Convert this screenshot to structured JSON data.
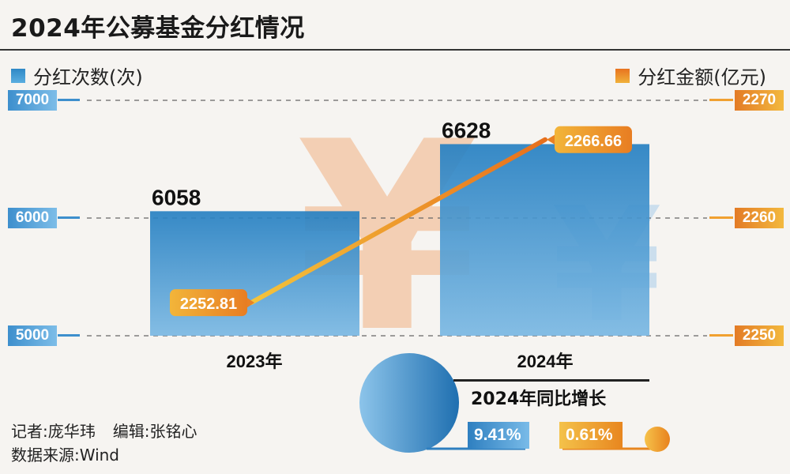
{
  "title": "2024年公募基金分红情况",
  "legend": {
    "left": "分红次数(次)",
    "right": "分红金额(亿元)"
  },
  "chart_data": {
    "type": "bar+line",
    "categories": [
      "2023年",
      "2024年"
    ],
    "series": [
      {
        "name": "分红次数(次)",
        "type": "bar",
        "axis": "left",
        "values": [
          6058,
          6628
        ],
        "value_labels": [
          "6058",
          "6628"
        ]
      },
      {
        "name": "分红金额(亿元)",
        "type": "line",
        "axis": "right",
        "values": [
          2252.81,
          2266.66
        ],
        "value_labels": [
          "2252.81",
          "2266.66"
        ]
      }
    ],
    "left_axis": {
      "ylim": [
        5000,
        7000
      ],
      "ticks": [
        "7000",
        "6000",
        "5000"
      ]
    },
    "right_axis": {
      "ylim": [
        2250,
        2270
      ],
      "ticks": [
        "2270",
        "2260",
        "2250"
      ]
    },
    "grid": true,
    "colors": {
      "bar": "#2f88c6",
      "line": "#ee8a26"
    }
  },
  "growth": {
    "title": "2024年同比增长",
    "count_growth": "9.41%",
    "amount_growth": "0.61%"
  },
  "footer": {
    "reporter": "记者:庞华玮",
    "editor": "编辑:张铭心",
    "source": "数据来源:Wind"
  },
  "watermark": {
    "symbol": "¥"
  }
}
